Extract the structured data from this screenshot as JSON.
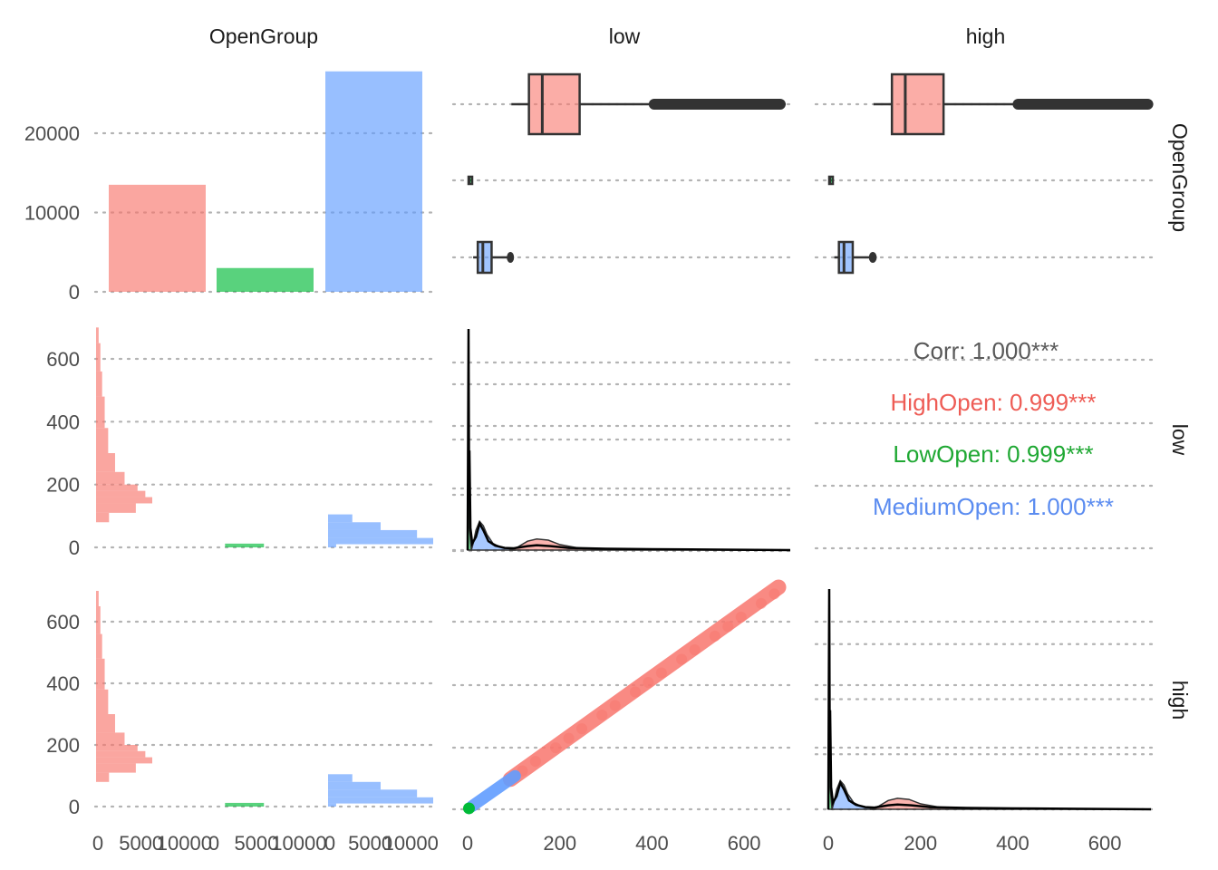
{
  "chart_data": {
    "type": "pairs",
    "variables": [
      "OpenGroup",
      "low",
      "high"
    ],
    "groups": [
      {
        "name": "HighOpen",
        "color": "#F8766D"
      },
      {
        "name": "LowOpen",
        "color": "#00BA38"
      },
      {
        "name": "MediumOpen",
        "color": "#619CFF"
      }
    ],
    "group_counts": {
      "HighOpen": 13500,
      "LowOpen": 3000,
      "MediumOpen": 27800
    },
    "count_axis": {
      "ticks": [
        0,
        10000,
        20000
      ],
      "ylim": [
        0,
        28000
      ]
    },
    "value_axis": {
      "ticks": [
        0,
        200,
        400,
        600
      ]
    },
    "facet_count_ticks": [
      0,
      5000,
      10000
    ],
    "boxplots": {
      "low": [
        {
          "group": "HighOpen",
          "whisker_low": 95,
          "q1": 133,
          "median": 162,
          "q3": 243,
          "whisker_high": 700,
          "outliers_to": 690
        },
        {
          "group": "LowOpen",
          "whisker_low": 1,
          "q1": 2,
          "median": 3,
          "q3": 5,
          "whisker_high": 9,
          "outliers_to": 9
        },
        {
          "group": "MediumOpen",
          "whisker_low": 12,
          "q1": 22,
          "median": 33,
          "q3": 52,
          "whisker_high": 95,
          "outliers_to": 100
        }
      ],
      "high": [
        {
          "group": "HighOpen",
          "whisker_low": 98,
          "q1": 138,
          "median": 167,
          "q3": 250,
          "whisker_high": 705,
          "outliers_to": 705
        },
        {
          "group": "LowOpen",
          "whisker_low": 1,
          "q1": 2,
          "median": 3,
          "q3": 5,
          "whisker_high": 9,
          "outliers_to": 9
        },
        {
          "group": "MediumOpen",
          "whisker_low": 13,
          "q1": 23,
          "median": 34,
          "q3": 53,
          "whisker_high": 98,
          "outliers_to": 105
        }
      ]
    },
    "correlations": {
      "overall": "Corr: 1.000***",
      "by_group": [
        {
          "group": "HighOpen",
          "label": "HighOpen: 0.999***"
        },
        {
          "group": "LowOpen",
          "label": "LowOpen: 0.999***"
        },
        {
          "group": "MediumOpen",
          "label": "MediumOpen: 1.000***"
        }
      ]
    },
    "scatter_low_vs_high": {
      "LowOpen": {
        "range": [
          0,
          10
        ]
      },
      "MediumOpen": {
        "range": [
          10,
          105
        ]
      },
      "HighOpen": {
        "range": [
          95,
          700
        ]
      }
    },
    "grid": true
  }
}
